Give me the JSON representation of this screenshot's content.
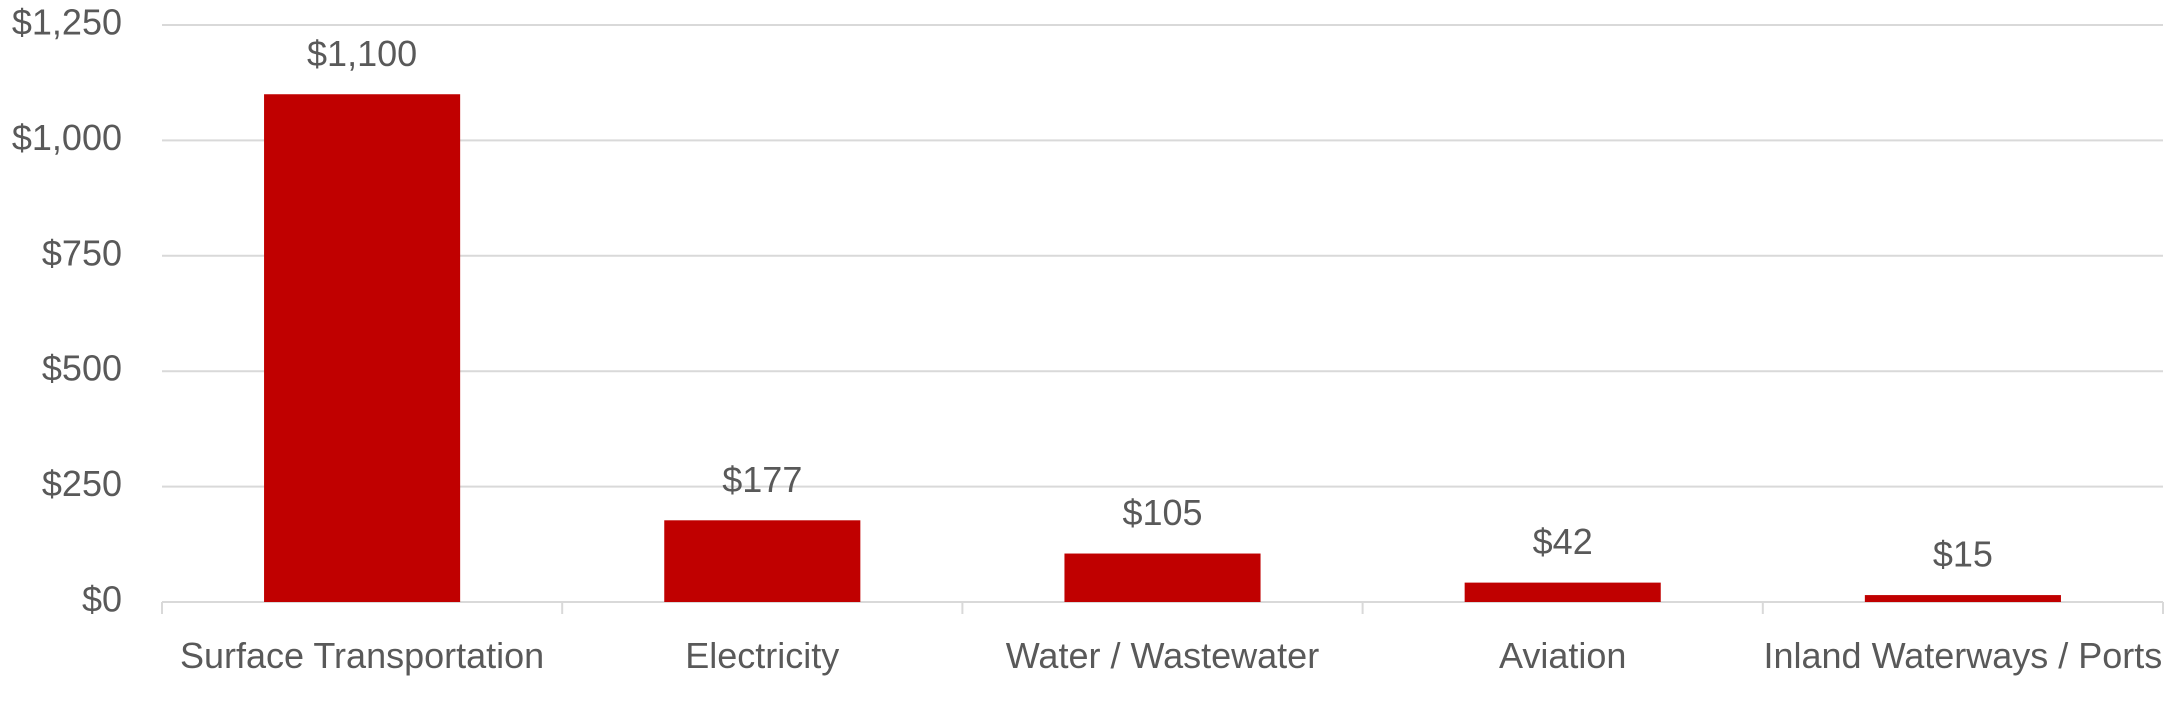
{
  "chart_data": {
    "type": "bar",
    "categories": [
      "Surface Transportation",
      "Electricity",
      "Water / Wastewater",
      "Aviation",
      "Inland Waterways / Ports"
    ],
    "values": [
      1100,
      177,
      105,
      42,
      15
    ],
    "value_labels": [
      "$1,100",
      "$177",
      "$105",
      "$42",
      "$15"
    ],
    "color": "#c00000",
    "ylim": [
      0,
      1250
    ],
    "yticks": [
      {
        "value": 0,
        "label": "$0"
      },
      {
        "value": 250,
        "label": "$250"
      },
      {
        "value": 500,
        "label": "$500"
      },
      {
        "value": 750,
        "label": "$750"
      },
      {
        "value": 1000,
        "label": "$1,000"
      },
      {
        "value": 1250,
        "label": "$1,250"
      }
    ],
    "grid": true
  }
}
